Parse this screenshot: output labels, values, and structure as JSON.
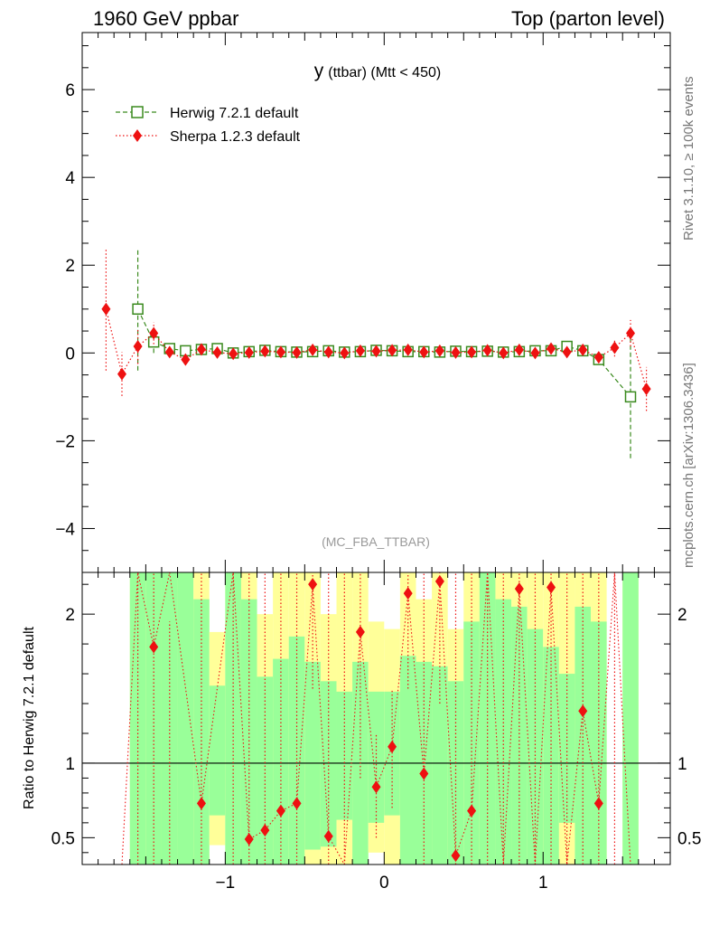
{
  "header": {
    "left": "1960 GeV ppbar",
    "right": "Top (parton level)"
  },
  "side": {
    "rivet": "Rivet 3.1.10, ≥ 100k events",
    "mcplots": "mcplots.cern.ch [arXiv:1306.3436]"
  },
  "chart_data": [
    {
      "type": "scatter",
      "panel": "main",
      "title_main": "y",
      "title_sub": "(ttbar) (Mtt < 450)",
      "watermark": "(MC_FBA_TTBAR)",
      "xlim": [
        -1.9,
        1.8
      ],
      "ylim": [
        -5,
        7.3
      ],
      "yticks": [
        -4,
        -2,
        0,
        2,
        4,
        6
      ],
      "ytick_labels": [
        "−4",
        "−2",
        "0",
        "2",
        "4",
        "6"
      ],
      "legend_position": "top-left",
      "series": [
        {
          "name": "Herwig 7.2.1 default",
          "color": "#3a8a1e",
          "marker": "open-square",
          "line": "dashed",
          "points": [
            {
              "x": -1.55,
              "y": 1.0,
              "err": 1.4
            },
            {
              "x": -1.45,
              "y": 0.25,
              "err": 0.25
            },
            {
              "x": -1.35,
              "y": 0.1,
              "err": 0.08
            },
            {
              "x": -1.25,
              "y": 0.05,
              "err": 0.05
            },
            {
              "x": -1.15,
              "y": 0.08,
              "err": 0.04
            },
            {
              "x": -1.05,
              "y": 0.1,
              "err": 0.04
            },
            {
              "x": -0.95,
              "y": 0.0,
              "err": 0.03
            },
            {
              "x": -0.85,
              "y": 0.03,
              "err": 0.03
            },
            {
              "x": -0.75,
              "y": 0.06,
              "err": 0.03
            },
            {
              "x": -0.65,
              "y": 0.03,
              "err": 0.03
            },
            {
              "x": -0.55,
              "y": 0.02,
              "err": 0.03
            },
            {
              "x": -0.45,
              "y": 0.03,
              "err": 0.03
            },
            {
              "x": -0.35,
              "y": 0.05,
              "err": 0.03
            },
            {
              "x": -0.25,
              "y": 0.02,
              "err": 0.03
            },
            {
              "x": -0.15,
              "y": 0.03,
              "err": 0.03
            },
            {
              "x": -0.05,
              "y": 0.06,
              "err": 0.03
            },
            {
              "x": 0.05,
              "y": 0.05,
              "err": 0.03
            },
            {
              "x": 0.15,
              "y": 0.03,
              "err": 0.03
            },
            {
              "x": 0.25,
              "y": 0.03,
              "err": 0.03
            },
            {
              "x": 0.35,
              "y": 0.02,
              "err": 0.03
            },
            {
              "x": 0.45,
              "y": 0.04,
              "err": 0.03
            },
            {
              "x": 0.55,
              "y": 0.03,
              "err": 0.03
            },
            {
              "x": 0.65,
              "y": 0.04,
              "err": 0.03
            },
            {
              "x": 0.75,
              "y": 0.02,
              "err": 0.03
            },
            {
              "x": 0.85,
              "y": 0.03,
              "err": 0.03
            },
            {
              "x": 0.95,
              "y": 0.05,
              "err": 0.03
            },
            {
              "x": 1.05,
              "y": 0.05,
              "err": 0.04
            },
            {
              "x": 1.15,
              "y": 0.15,
              "err": 0.05
            },
            {
              "x": 1.25,
              "y": 0.05,
              "err": 0.05
            },
            {
              "x": 1.35,
              "y": -0.15,
              "err": 0.1
            },
            {
              "x": 1.55,
              "y": -1.0,
              "err": 1.4
            }
          ]
        },
        {
          "name": "Sherpa 1.2.3 default",
          "color": "#ee1111",
          "marker": "filled-diamond",
          "line": "dotted",
          "points": [
            {
              "x": -1.75,
              "y": 1.0,
              "err": 1.4
            },
            {
              "x": -1.65,
              "y": -0.48,
              "err": 0.5
            },
            {
              "x": -1.55,
              "y": 0.15,
              "err": 0.4
            },
            {
              "x": -1.45,
              "y": 0.45,
              "err": 0.25
            },
            {
              "x": -1.35,
              "y": 0.02,
              "err": 0.12
            },
            {
              "x": -1.25,
              "y": -0.15,
              "err": 0.08
            },
            {
              "x": -1.15,
              "y": 0.08,
              "err": 0.05
            },
            {
              "x": -1.05,
              "y": 0.01,
              "err": 0.04
            },
            {
              "x": -0.95,
              "y": -0.02,
              "err": 0.04
            },
            {
              "x": -0.85,
              "y": 0.01,
              "err": 0.03
            },
            {
              "x": -0.75,
              "y": 0.04,
              "err": 0.03
            },
            {
              "x": -0.65,
              "y": 0.02,
              "err": 0.03
            },
            {
              "x": -0.55,
              "y": 0.01,
              "err": 0.03
            },
            {
              "x": -0.45,
              "y": 0.07,
              "err": 0.03
            },
            {
              "x": -0.35,
              "y": 0.02,
              "err": 0.03
            },
            {
              "x": -0.25,
              "y": 0.0,
              "err": 0.03
            },
            {
              "x": -0.15,
              "y": 0.05,
              "err": 0.03
            },
            {
              "x": -0.05,
              "y": 0.04,
              "err": 0.03
            },
            {
              "x": 0.05,
              "y": 0.06,
              "err": 0.03
            },
            {
              "x": 0.15,
              "y": 0.07,
              "err": 0.03
            },
            {
              "x": 0.25,
              "y": 0.02,
              "err": 0.03
            },
            {
              "x": 0.35,
              "y": 0.05,
              "err": 0.03
            },
            {
              "x": 0.45,
              "y": 0.01,
              "err": 0.03
            },
            {
              "x": 0.55,
              "y": 0.02,
              "err": 0.03
            },
            {
              "x": 0.65,
              "y": 0.06,
              "err": 0.03
            },
            {
              "x": 0.75,
              "y": 0.0,
              "err": 0.03
            },
            {
              "x": 0.85,
              "y": 0.07,
              "err": 0.03
            },
            {
              "x": 0.95,
              "y": 0.0,
              "err": 0.03
            },
            {
              "x": 1.05,
              "y": 0.1,
              "err": 0.04
            },
            {
              "x": 1.15,
              "y": 0.02,
              "err": 0.05
            },
            {
              "x": 1.25,
              "y": 0.07,
              "err": 0.06
            },
            {
              "x": 1.35,
              "y": -0.1,
              "err": 0.1
            },
            {
              "x": 1.45,
              "y": 0.12,
              "err": 0.2
            },
            {
              "x": 1.55,
              "y": 0.45,
              "err": 0.3
            },
            {
              "x": 1.65,
              "y": -0.82,
              "err": 0.5
            }
          ]
        }
      ]
    },
    {
      "type": "scatter",
      "panel": "ratio",
      "ylabel": "Ratio to Herwig 7.2.1 default",
      "xlim": [
        -1.9,
        1.8
      ],
      "ylim": [
        0.32,
        2.28
      ],
      "xticks": [
        -1,
        0,
        1
      ],
      "xtick_labels": [
        "−1",
        "0",
        "1"
      ],
      "yticks": [
        0.5,
        1,
        2
      ],
      "ytick_labels": [
        "0.5",
        "1",
        "2"
      ],
      "reference_line": 1,
      "band_bins": [
        {
          "x0": -1.6,
          "x1": -1.5,
          "green": [
            0.32,
            2.28
          ],
          "yellow": [
            0.32,
            2.28
          ]
        },
        {
          "x0": -1.5,
          "x1": -1.4,
          "green": [
            0.32,
            2.28
          ],
          "yellow": [
            0.32,
            2.28
          ]
        },
        {
          "x0": -1.4,
          "x1": -1.3,
          "green": [
            0.32,
            2.28
          ],
          "yellow": [
            0.32,
            2.28
          ]
        },
        {
          "x0": -1.3,
          "x1": -1.2,
          "green": [
            0.32,
            2.28
          ],
          "yellow": [
            0.32,
            2.28
          ]
        },
        {
          "x0": -1.2,
          "x1": -1.1,
          "green": [
            0.32,
            2.1
          ],
          "yellow": [
            0.32,
            2.28
          ]
        },
        {
          "x0": -1.1,
          "x1": -1.0,
          "green": [
            0.65,
            1.52
          ],
          "yellow": [
            0.45,
            1.88
          ]
        },
        {
          "x0": -1.0,
          "x1": -0.9,
          "green": [
            0.32,
            2.28
          ],
          "yellow": [
            0.32,
            2.28
          ]
        },
        {
          "x0": -0.9,
          "x1": -0.8,
          "green": [
            0.32,
            2.1
          ],
          "yellow": [
            0.32,
            2.28
          ]
        },
        {
          "x0": -0.8,
          "x1": -0.7,
          "green": [
            0.32,
            1.58
          ],
          "yellow": [
            0.32,
            2.0
          ]
        },
        {
          "x0": -0.7,
          "x1": -0.6,
          "green": [
            0.32,
            1.7
          ],
          "yellow": [
            0.32,
            2.28
          ]
        },
        {
          "x0": -0.6,
          "x1": -0.5,
          "green": [
            0.32,
            1.85
          ],
          "yellow": [
            0.32,
            2.28
          ]
        },
        {
          "x0": -0.5,
          "x1": -0.4,
          "green": [
            0.42,
            1.68
          ],
          "yellow": [
            0.32,
            2.28
          ]
        },
        {
          "x0": -0.4,
          "x1": -0.3,
          "green": [
            0.44,
            1.55
          ],
          "yellow": [
            0.32,
            2.0
          ]
        },
        {
          "x0": -0.3,
          "x1": -0.2,
          "green": [
            0.62,
            1.48
          ],
          "yellow": [
            0.32,
            2.28
          ]
        },
        {
          "x0": -0.2,
          "x1": -0.1,
          "green": [
            0.32,
            1.68
          ],
          "yellow": [
            0.32,
            2.28
          ]
        },
        {
          "x0": -0.1,
          "x1": 0.0,
          "green": [
            0.6,
            1.48
          ],
          "yellow": [
            0.4,
            1.95
          ]
        },
        {
          "x0": 0.0,
          "x1": 0.1,
          "green": [
            0.65,
            1.48
          ],
          "yellow": [
            0.32,
            1.9
          ]
        },
        {
          "x0": 0.1,
          "x1": 0.2,
          "green": [
            0.32,
            1.72
          ],
          "yellow": [
            0.32,
            2.28
          ]
        },
        {
          "x0": 0.2,
          "x1": 0.3,
          "green": [
            0.32,
            1.68
          ],
          "yellow": [
            0.32,
            2.1
          ]
        },
        {
          "x0": 0.3,
          "x1": 0.4,
          "green": [
            0.32,
            1.65
          ],
          "yellow": [
            0.32,
            2.28
          ]
        },
        {
          "x0": 0.4,
          "x1": 0.5,
          "green": [
            0.32,
            1.55
          ],
          "yellow": [
            0.32,
            1.9
          ]
        },
        {
          "x0": 0.5,
          "x1": 0.6,
          "green": [
            0.32,
            1.95
          ],
          "yellow": [
            0.32,
            2.28
          ]
        },
        {
          "x0": 0.6,
          "x1": 0.7,
          "green": [
            0.32,
            2.28
          ],
          "yellow": [
            0.32,
            2.28
          ]
        },
        {
          "x0": 0.7,
          "x1": 0.8,
          "green": [
            0.32,
            2.1
          ],
          "yellow": [
            0.32,
            2.28
          ]
        },
        {
          "x0": 0.8,
          "x1": 0.9,
          "green": [
            0.32,
            2.05
          ],
          "yellow": [
            0.32,
            2.28
          ]
        },
        {
          "x0": 0.9,
          "x1": 1.0,
          "green": [
            0.32,
            1.9
          ],
          "yellow": [
            0.32,
            2.28
          ]
        },
        {
          "x0": 1.0,
          "x1": 1.1,
          "green": [
            0.32,
            1.78
          ],
          "yellow": [
            0.32,
            2.28
          ]
        },
        {
          "x0": 1.1,
          "x1": 1.2,
          "green": [
            0.6,
            1.6
          ],
          "yellow": [
            0.32,
            2.28
          ]
        },
        {
          "x0": 1.2,
          "x1": 1.3,
          "green": [
            0.32,
            2.05
          ],
          "yellow": [
            0.32,
            2.28
          ]
        },
        {
          "x0": 1.3,
          "x1": 1.4,
          "green": [
            0.32,
            1.95
          ],
          "yellow": [
            0.32,
            2.28
          ]
        },
        {
          "x0": 1.5,
          "x1": 1.6,
          "green": [
            0.32,
            2.28
          ],
          "yellow": [
            0.32,
            2.28
          ]
        }
      ],
      "series": [
        {
          "name": "Sherpa 1.2.3 default",
          "color": "#ee1111",
          "marker": "filled-diamond",
          "line": "dotted",
          "points": [
            {
              "x": -1.65,
              "y": null
            },
            {
              "x": -1.55,
              "y": null,
              "err_lo": 0.32,
              "err_hi": 2.28
            },
            {
              "x": -1.45,
              "y": 1.78,
              "err_lo": 0.32,
              "err_hi": 2.28
            },
            {
              "x": -1.35,
              "y": null,
              "err_lo": 0.32,
              "err_hi": 1.95
            },
            {
              "x": -1.15,
              "y": 0.73,
              "err_lo": 0.32,
              "err_hi": 2.28
            },
            {
              "x": -0.95,
              "y": null,
              "err_lo": 0.32,
              "err_hi": 2.28
            },
            {
              "x": -0.85,
              "y": 0.49,
              "err_lo": 0.32,
              "err_hi": 2.28
            },
            {
              "x": -0.75,
              "y": 0.55,
              "err_lo": 0.32,
              "err_hi": 2.28
            },
            {
              "x": -0.65,
              "y": 0.68,
              "err_lo": 0.32,
              "err_hi": 2.28
            },
            {
              "x": -0.55,
              "y": 0.73,
              "err_lo": 0.32,
              "err_hi": 2.28
            },
            {
              "x": -0.45,
              "y": 2.2,
              "err_lo": 1.5,
              "err_hi": 2.28
            },
            {
              "x": -0.35,
              "y": 0.51,
              "err_lo": 0.32,
              "err_hi": 2.28
            },
            {
              "x": -0.25,
              "y": null,
              "err_lo": 0.32,
              "err_hi": 2.28
            },
            {
              "x": -0.15,
              "y": 1.88,
              "err_lo": 0.9,
              "err_hi": 2.28
            },
            {
              "x": -0.05,
              "y": 0.84,
              "err_lo": 0.5,
              "err_hi": 1.2
            },
            {
              "x": 0.05,
              "y": 1.11,
              "err_lo": 0.7,
              "err_hi": 1.5
            },
            {
              "x": 0.15,
              "y": 2.14,
              "err_lo": 1.5,
              "err_hi": 2.28
            },
            {
              "x": 0.25,
              "y": 0.93,
              "err_lo": 0.32,
              "err_hi": 2.28
            },
            {
              "x": 0.35,
              "y": 2.22,
              "err_lo": 1.4,
              "err_hi": 2.28
            },
            {
              "x": 0.45,
              "y": 0.38,
              "err_lo": 0.32,
              "err_hi": 2.28
            },
            {
              "x": 0.55,
              "y": 0.68,
              "err_lo": 0.32,
              "err_hi": 2.28
            },
            {
              "x": 0.65,
              "y": null,
              "err_lo": 0.32,
              "err_hi": 2.28
            },
            {
              "x": 0.75,
              "y": null,
              "err_lo": 0.32,
              "err_hi": 2.28
            },
            {
              "x": 0.85,
              "y": 2.17,
              "err_lo": 0.32,
              "err_hi": 2.28
            },
            {
              "x": 0.95,
              "y": null,
              "err_lo": 0.32,
              "err_hi": 2.28
            },
            {
              "x": 1.05,
              "y": 2.18,
              "err_lo": 0.32,
              "err_hi": 2.28
            },
            {
              "x": 1.15,
              "y": null,
              "err_lo": 0.32,
              "err_hi": 2.28
            },
            {
              "x": 1.25,
              "y": 1.35,
              "err_lo": 0.32,
              "err_hi": 2.28
            },
            {
              "x": 1.35,
              "y": 0.73,
              "err_lo": 0.32,
              "err_hi": 2.28
            },
            {
              "x": 1.45,
              "y": null,
              "err_lo": 0.32,
              "err_hi": 2.28
            },
            {
              "x": 1.55,
              "y": null
            }
          ]
        }
      ]
    }
  ]
}
